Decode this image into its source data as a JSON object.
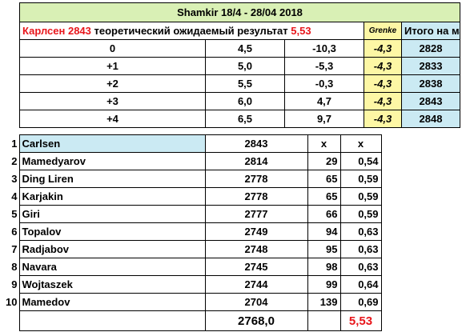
{
  "title": "Shamkir 18/4 - 28/04 2018",
  "header": {
    "player_name": "Карлсен",
    "player_rating": "2843",
    "text": "теоретический ожидаемый результат",
    "expected": "5,53",
    "grenke": "Grenke",
    "total_label": "Итого на май"
  },
  "scenarios": [
    {
      "delta": "0",
      "score": "4,5",
      "change": "-10,3",
      "grenke": "-4,3",
      "total": "2828"
    },
    {
      "delta": "+1",
      "score": "5,0",
      "change": "-5,3",
      "grenke": "-4,3",
      "total": "2833"
    },
    {
      "delta": "+2",
      "score": "5,5",
      "change": "-0,3",
      "grenke": "-4,3",
      "total": "2838"
    },
    {
      "delta": "+3",
      "score": "6,0",
      "change": "4,7",
      "grenke": "-4,3",
      "total": "2843"
    },
    {
      "delta": "+4",
      "score": "6,5",
      "change": "9,7",
      "grenke": "-4,3",
      "total": "2848"
    }
  ],
  "players": [
    {
      "n": "1",
      "name": "Carlsen",
      "rating": "2843",
      "diff": "x",
      "prob": "x"
    },
    {
      "n": "2",
      "name": "Mamedyarov",
      "rating": "2814",
      "diff": "29",
      "prob": "0,54"
    },
    {
      "n": "3",
      "name": "Ding Liren",
      "rating": "2778",
      "diff": "65",
      "prob": "0,59"
    },
    {
      "n": "4",
      "name": "Karjakin",
      "rating": "2778",
      "diff": "65",
      "prob": "0,59"
    },
    {
      "n": "5",
      "name": "Giri",
      "rating": "2777",
      "diff": "66",
      "prob": "0,59"
    },
    {
      "n": "6",
      "name": "Topalov",
      "rating": "2749",
      "diff": "94",
      "prob": "0,63"
    },
    {
      "n": "7",
      "name": "Radjabov",
      "rating": "2748",
      "diff": "95",
      "prob": "0,63"
    },
    {
      "n": "8",
      "name": "Navara",
      "rating": "2745",
      "diff": "98",
      "prob": "0,63"
    },
    {
      "n": "9",
      "name": "Wojtaszek",
      "rating": "2744",
      "diff": "99",
      "prob": "0,64"
    },
    {
      "n": "10",
      "name": "Mamedov",
      "rating": "2704",
      "diff": "139",
      "prob": "0,69"
    }
  ],
  "totals": {
    "avg_rating": "2768,0",
    "expected": "5,53"
  },
  "colors": {
    "green": "#d9f0b5",
    "blue": "#cbeaf3",
    "yellow": "#fdf7a5",
    "red": "#e8161b"
  }
}
